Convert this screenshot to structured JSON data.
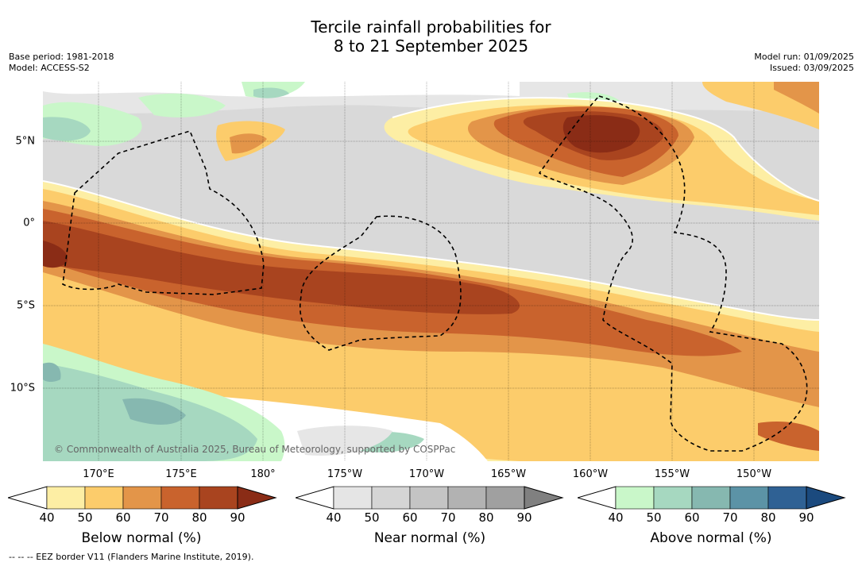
{
  "title_line1": "Tercile rainfall probabilities for",
  "title_line2": "8 to 21 September 2025",
  "base_period": "Base period: 1981-2018",
  "model": "Model: ACCESS-S2",
  "model_run": "Model run: 01/09/2025",
  "issued": "Issued: 03/09/2025",
  "copyright": "© Commonwealth of Australia 2025, Bureau of Meteorology, supported by COSPPac",
  "footer": "-- -- -- EEZ border V11 (Flanders Marine Institute, 2019).",
  "x_ticks": [
    {
      "label": "170°E"
    },
    {
      "label": "175°E"
    },
    {
      "label": "180°"
    },
    {
      "label": "175°W"
    },
    {
      "label": "170°W"
    },
    {
      "label": "165°W"
    },
    {
      "label": "160°W"
    },
    {
      "label": "155°W"
    },
    {
      "label": "150°W"
    }
  ],
  "y_ticks": [
    {
      "label": "5°N"
    },
    {
      "label": "0°"
    },
    {
      "label": "5°S"
    },
    {
      "label": "10°S"
    }
  ],
  "colorbars": [
    {
      "title": "Below normal (%)",
      "ticks": [
        "40",
        "50",
        "60",
        "70",
        "80",
        "90"
      ],
      "colors": [
        "#fdeea4",
        "#fccc6b",
        "#e39549",
        "#c9632d",
        "#a9441f",
        "#8a2c16"
      ]
    },
    {
      "title": "Near normal (%)",
      "ticks": [
        "40",
        "50",
        "60",
        "70",
        "80",
        "90"
      ],
      "colors": [
        "#e5e5e5",
        "#d5d5d5",
        "#c4c4c4",
        "#b2b2b2",
        "#a0a0a0",
        "#808080"
      ]
    },
    {
      "title": "Above normal (%)",
      "ticks": [
        "40",
        "50",
        "60",
        "70",
        "80",
        "90"
      ],
      "colors": [
        "#c9f7c9",
        "#a6d8c0",
        "#86b8b0",
        "#5c93a6",
        "#2f6194",
        "#1b4a7e"
      ]
    }
  ]
}
